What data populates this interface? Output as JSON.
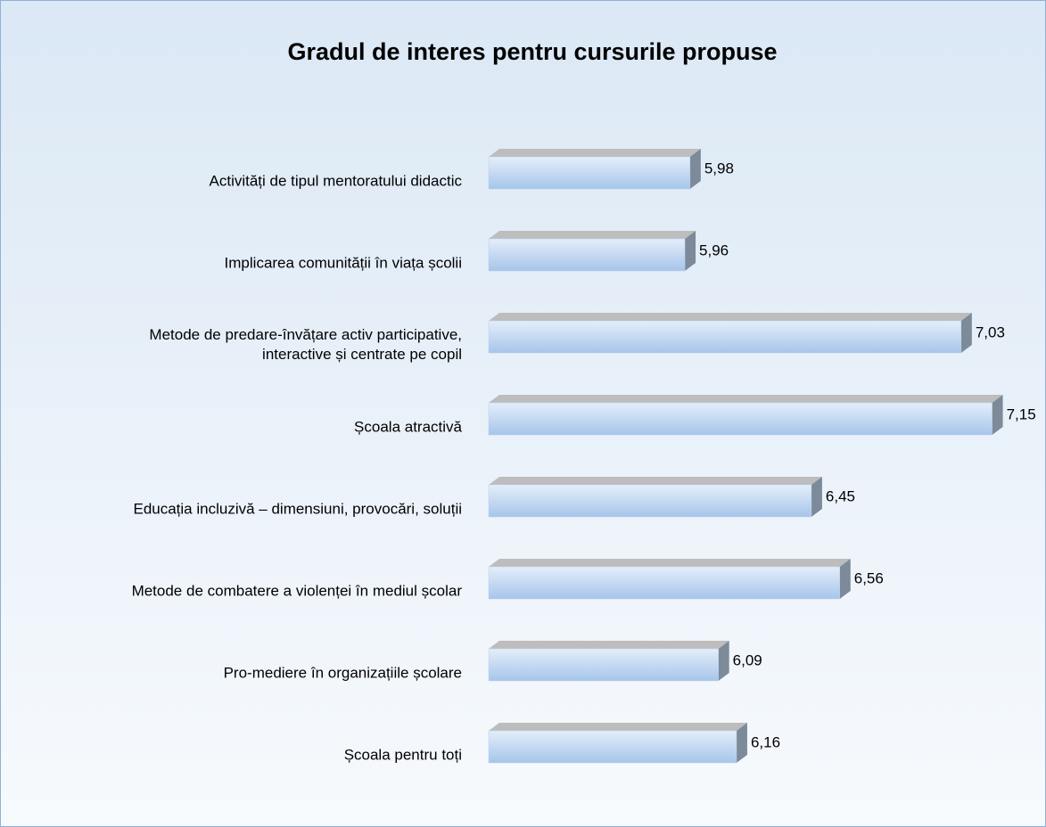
{
  "chart_data": {
    "type": "bar3d_horizontal",
    "title": "Gradul de interes pentru cursurile propuse",
    "categories": [
      "Activități de tipul mentoratului didactic",
      "Implicarea comunității în viața școlii",
      "Metode de predare-învățare activ participative,\ninteractive și centrate pe copil",
      "Școala atractivă",
      "Educația incluzivă – dimensiuni, provocări, soluții",
      "Metode de combatere a violenței în mediul școlar",
      "Pro-mediere în organizațiile școlare",
      "Școala pentru toți"
    ],
    "values": [
      5.98,
      5.96,
      7.03,
      7.15,
      6.45,
      6.56,
      6.09,
      6.16
    ],
    "value_labels": [
      "5,98",
      "5,96",
      "7,03",
      "7,15",
      "6,45",
      "6,56",
      "6,09",
      "6,16"
    ],
    "color": "#b8d0ee",
    "xlim": [
      5.2,
      7.3
    ]
  }
}
